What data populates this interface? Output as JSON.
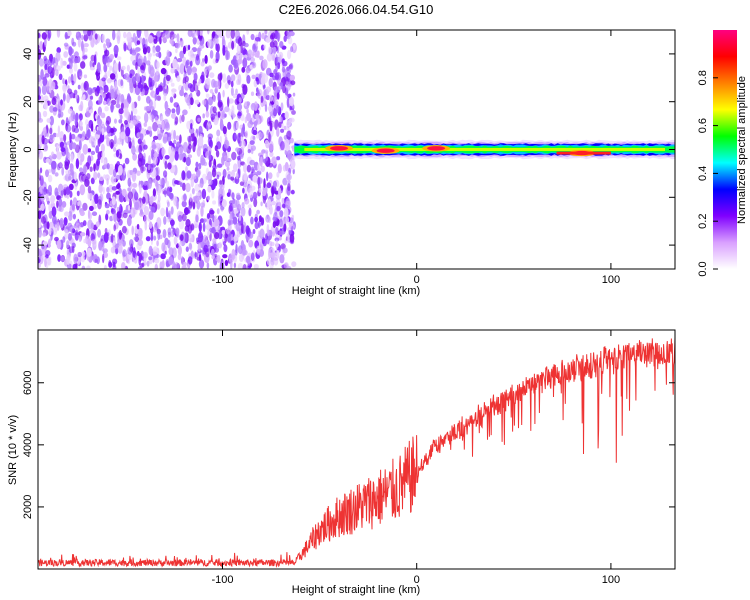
{
  "title": "C2E6.2026.066.04.54.G10",
  "chart_data": [
    {
      "type": "heatmap",
      "title": "C2E6.2026.066.04.54.G10",
      "xlabel": "Height of straight line (km)",
      "ylabel": "Frequency (Hz)",
      "xlim": [
        -195,
        133
      ],
      "ylim": [
        -50,
        50
      ],
      "xticks": [
        -100,
        0,
        100
      ],
      "xtick_labels": [
        "-100",
        "0",
        "100"
      ],
      "yticks": [
        -40,
        -20,
        0,
        20,
        40
      ],
      "ytick_labels": [
        "-40",
        "-20",
        "0",
        "20",
        "40"
      ],
      "noise_region_x": [
        -195,
        -63
      ],
      "signal_band": {
        "x_start": -63,
        "x_end": 133,
        "center_frequency": 0,
        "peaks": [
          {
            "x": -40,
            "frequency": 0.5
          },
          {
            "x": -16,
            "frequency": -0.5
          },
          {
            "x": 10,
            "frequency": 0.5
          },
          {
            "x": 85,
            "frequency": -1.5
          }
        ]
      },
      "colorbar": {
        "label": "Normalized spectral amplitude",
        "range": [
          0,
          1
        ],
        "ticks": [
          0.0,
          0.2,
          0.4,
          0.6,
          0.8
        ],
        "tick_labels": [
          "0.0",
          "0.2",
          "0.4",
          "0.6",
          "0.8"
        ],
        "colors": [
          "#ffffff",
          "#d9a0ff",
          "#8000ff",
          "#0000ff",
          "#00ffff",
          "#00ff00",
          "#ffff00",
          "#ff8000",
          "#ff0000",
          "#ff0080"
        ]
      }
    },
    {
      "type": "line",
      "xlabel": "Height of straight line (km)",
      "ylabel": "SNR (10 * v/v)",
      "xlim": [
        -195,
        133
      ],
      "ylim": [
        0,
        7700
      ],
      "xticks": [
        -100,
        0,
        100
      ],
      "xtick_labels": [
        "-100",
        "0",
        "100"
      ],
      "yticks": [
        2000,
        4000,
        6000
      ],
      "ytick_labels": [
        "2000",
        "4000",
        "6000"
      ],
      "color": "#ee3333",
      "envelope": {
        "x": [
          -195,
          -63,
          -58,
          -50,
          -40,
          -30,
          -20,
          -10,
          0,
          10,
          20,
          30,
          40,
          50,
          60,
          70,
          80,
          90,
          100,
          110,
          120,
          133
        ],
        "y": [
          200,
          200,
          600,
          1300,
          1800,
          2100,
          2400,
          2700,
          3300,
          4100,
          4600,
          5100,
          5500,
          5900,
          6200,
          6500,
          6700,
          6900,
          7000,
          7100,
          7200,
          7300
        ]
      }
    }
  ]
}
